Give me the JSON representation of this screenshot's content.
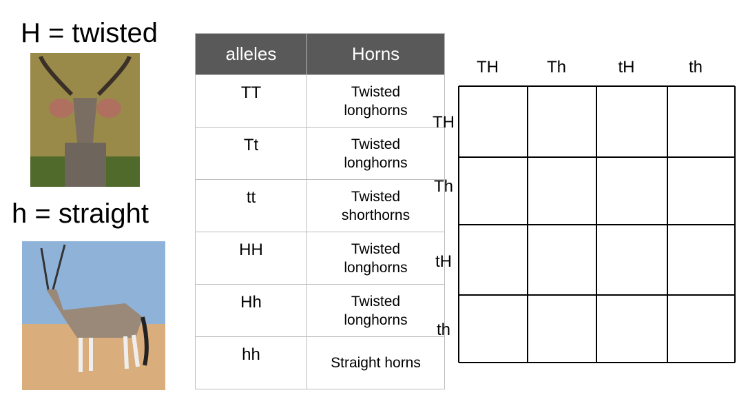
{
  "labels": {
    "dominant": "H = twisted",
    "recessive": "h = straight"
  },
  "table": {
    "header": [
      "alleles",
      "Horns"
    ],
    "rows": [
      [
        "TT",
        "Twisted longhorns"
      ],
      [
        "Tt",
        "Twisted longhorns"
      ],
      [
        "tt",
        "Twisted shorthorns"
      ],
      [
        "HH",
        "Twisted longhorns"
      ],
      [
        "Hh",
        "Twisted longhorns"
      ],
      [
        "hh",
        "Straight horns"
      ]
    ]
  },
  "punnett": {
    "columns": [
      "TH",
      "Th",
      "tH",
      "th"
    ],
    "rows": [
      "TH",
      "Th",
      "tH",
      "th"
    ]
  }
}
